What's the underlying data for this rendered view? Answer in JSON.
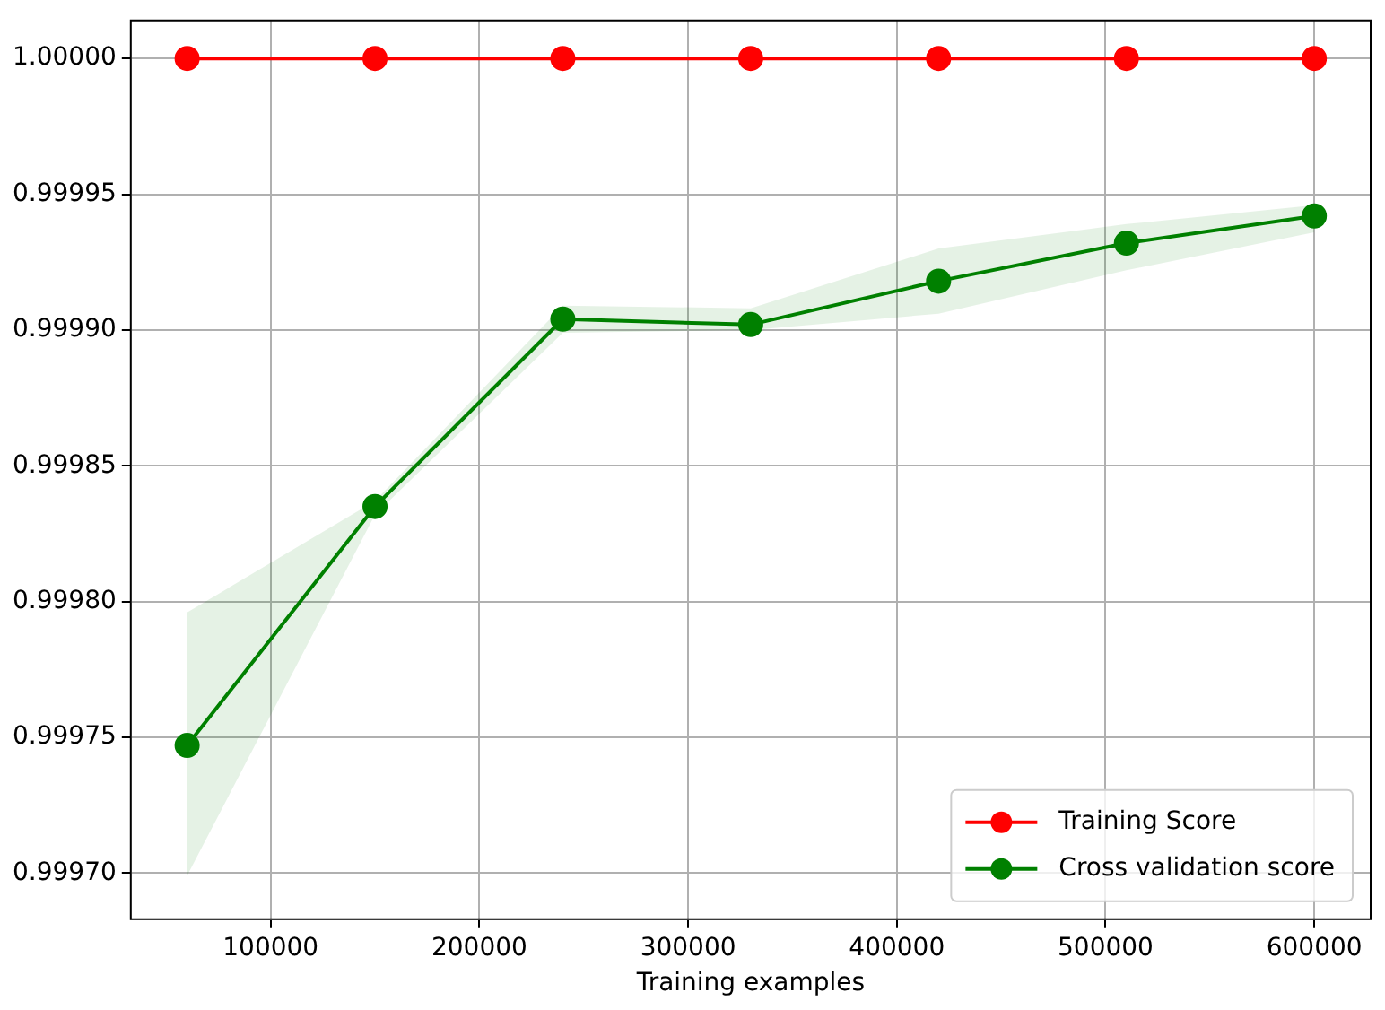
{
  "chart_data": {
    "type": "line",
    "xlabel": "Training examples",
    "x": [
      60000,
      150000,
      240000,
      330000,
      420000,
      510000,
      600000
    ],
    "series": [
      {
        "name": "Training Score",
        "color": "#ff0000",
        "values": [
          1.0,
          1.0,
          1.0,
          1.0,
          1.0,
          1.0,
          1.0
        ]
      },
      {
        "name": "Cross validation score",
        "color": "#008000",
        "values": [
          0.999747,
          0.999835,
          0.999904,
          0.999902,
          0.999918,
          0.999932,
          0.999942
        ],
        "lower": [
          0.999699,
          0.999832,
          0.999899,
          0.9999,
          0.999906,
          0.999922,
          0.999936
        ],
        "upper": [
          0.999796,
          0.999837,
          0.999909,
          0.999908,
          0.99993,
          0.999939,
          0.999946
        ]
      }
    ],
    "xlim": [
      33000,
      627000
    ],
    "xticks": [
      100000,
      200000,
      300000,
      400000,
      500000,
      600000
    ],
    "ylim": [
      0.999683,
      1.000014
    ],
    "yticks": [
      {
        "value": 0.9997,
        "label": "0.99970"
      },
      {
        "value": 0.99975,
        "label": "0.99975"
      },
      {
        "value": 0.9998,
        "label": "0.99980"
      },
      {
        "value": 0.99985,
        "label": "0.99985"
      },
      {
        "value": 0.9999,
        "label": "0.99990"
      },
      {
        "value": 0.99995,
        "label": "0.99995"
      },
      {
        "value": 1.0,
        "label": "1.00000"
      }
    ],
    "grid": true,
    "legend": "bottom right",
    "marker": "circle",
    "line_style": "solid"
  }
}
